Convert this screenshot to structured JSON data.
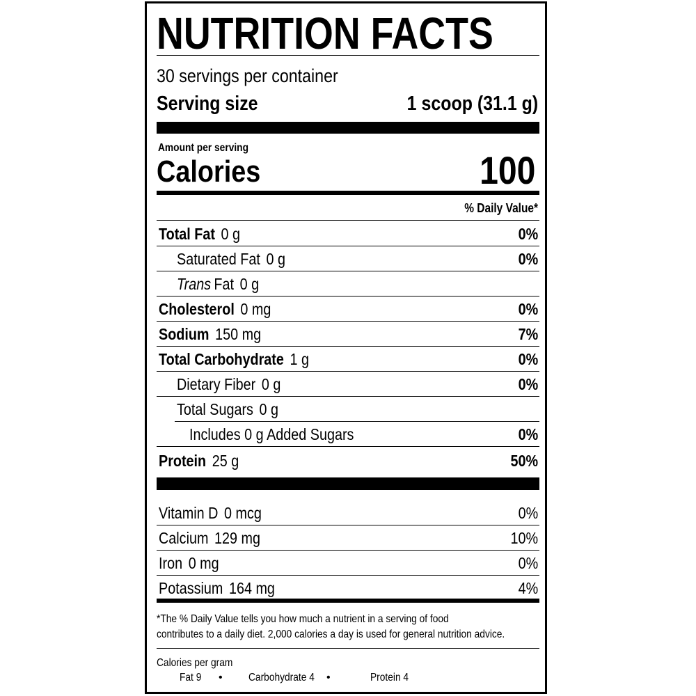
{
  "title": "NUTRITION FACTS",
  "servings_per_container": "30 servings per container",
  "serving_size_label": "Serving size",
  "serving_size_value": "1 scoop (31.1 g)",
  "amount_per_serving": "Amount per serving",
  "calories_label": "Calories",
  "calories_value": "100",
  "daily_value_header": "% Daily Value*",
  "nutrients": [
    {
      "name": "Total Fat",
      "amount": "0 g",
      "dv": "0%",
      "bold": true,
      "indent": 0
    },
    {
      "name": "Saturated Fat",
      "amount": "0 g",
      "dv": "0%",
      "bold": false,
      "indent": 1
    },
    {
      "name": "Trans",
      "name_suffix": "Fat",
      "amount": "0 g",
      "dv": "",
      "bold": false,
      "indent": 1,
      "italic_prefix": true
    },
    {
      "name": "Cholesterol",
      "amount": "0 mg",
      "dv": "0%",
      "bold": true,
      "indent": 0
    },
    {
      "name": "Sodium",
      "amount": "150 mg",
      "dv": "7%",
      "bold": true,
      "indent": 0
    },
    {
      "name": "Total Carbohydrate",
      "amount": "1 g",
      "dv": "0%",
      "bold": true,
      "indent": 0
    },
    {
      "name": "Dietary Fiber",
      "amount": "0 g",
      "dv": "0%",
      "bold": false,
      "indent": 1
    },
    {
      "name": "Total Sugars",
      "amount": "0 g",
      "dv": "",
      "bold": false,
      "indent": 1
    },
    {
      "name": "Includes 0 g Added Sugars",
      "amount": "",
      "dv": "0%",
      "bold": false,
      "indent": 2
    },
    {
      "name": "Protein",
      "amount": "25 g",
      "dv": "50%",
      "bold": true,
      "indent": 0
    }
  ],
  "vitamins": [
    {
      "name": "Vitamin D",
      "amount": "0 mcg",
      "dv": "0%"
    },
    {
      "name": "Calcium",
      "amount": "129 mg",
      "dv": "10%"
    },
    {
      "name": "Iron",
      "amount": "0 mg",
      "dv": "0%"
    },
    {
      "name": "Potassium",
      "amount": "164 mg",
      "dv": "4%"
    }
  ],
  "footnote_line1": "*The % Daily Value tells you how much a nutrient in a serving of food",
  "footnote_line2": "contributes to a daily diet. 2,000 calories a day is used for general nutrition advice.",
  "calories_per_gram_label": "Calories per gram",
  "calories_per_gram": [
    "Fat 9",
    "Carbohydrate 4",
    "Protein 4"
  ],
  "bullet": "•"
}
